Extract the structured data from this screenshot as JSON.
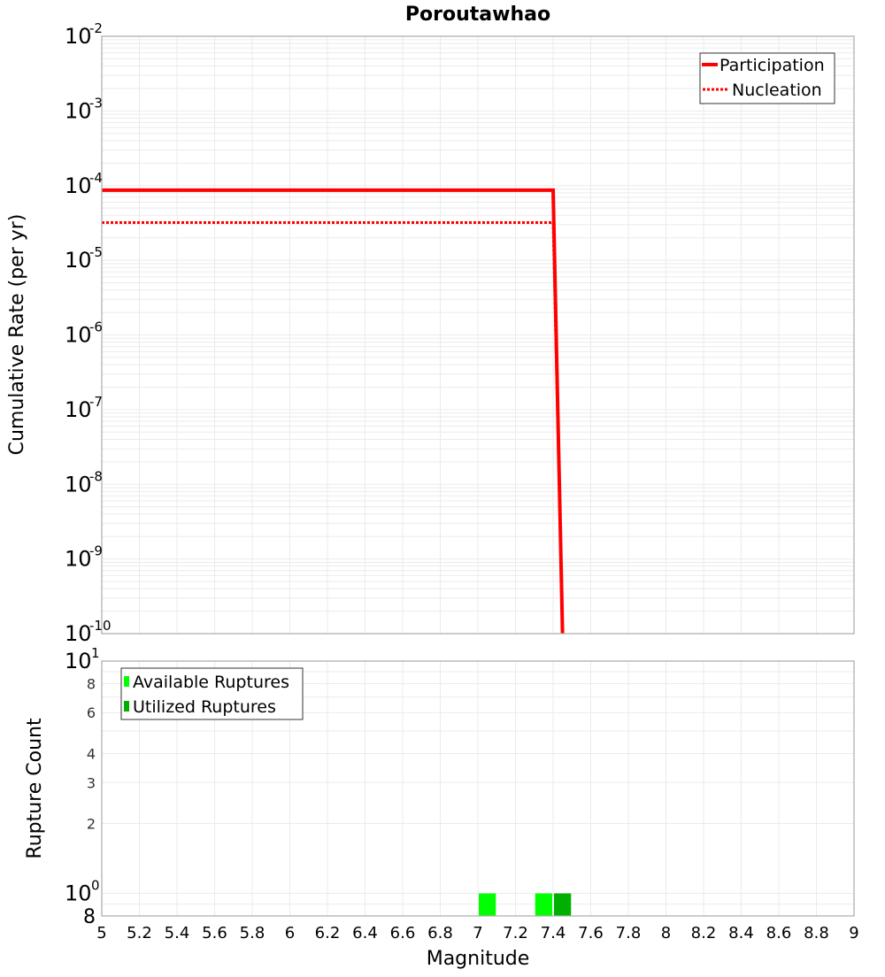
{
  "chart_data": [
    {
      "type": "line",
      "title": "Poroutawhao",
      "xlabel": "",
      "ylabel": "Cumulative Rate (per yr)",
      "yscale": "log",
      "xlim": [
        5,
        9
      ],
      "ylim": [
        1e-10,
        0.01
      ],
      "y_ticks": [
        "10^-2",
        "10^-3",
        "10^-4",
        "10^-5",
        "10^-6",
        "10^-7",
        "10^-8",
        "10^-9",
        "10^-10"
      ],
      "grid": true,
      "legend_position": "upper right",
      "series": [
        {
          "name": "Participation",
          "color": "#ff0000",
          "style": "solid",
          "x": [
            5.0,
            7.4,
            7.45
          ],
          "y": [
            8.7e-05,
            8.7e-05,
            1e-10
          ]
        },
        {
          "name": "Nucleation",
          "color": "#ff0000",
          "style": "dotted",
          "x": [
            5.0,
            7.4,
            7.45
          ],
          "y": [
            3.2e-05,
            3.2e-05,
            1e-10
          ]
        }
      ]
    },
    {
      "type": "bar",
      "title": "",
      "xlabel": "Magnitude",
      "ylabel": "Rupture Count",
      "yscale": "log",
      "xlim": [
        5,
        9
      ],
      "ylim": [
        0.8,
        10
      ],
      "x_ticks": [
        "5",
        "5.2",
        "5.4",
        "5.6",
        "5.8",
        "6",
        "6.2",
        "6.4",
        "6.6",
        "6.8",
        "7",
        "7.2",
        "7.4",
        "7.6",
        "7.8",
        "8",
        "8.2",
        "8.4",
        "8.6",
        "8.8",
        "9"
      ],
      "y_ticks": [
        "10^1",
        "8",
        "6",
        "4",
        "3",
        "2",
        "10^0",
        "8"
      ],
      "grid": true,
      "legend_position": "upper left",
      "bar_width": 0.1,
      "series": [
        {
          "name": "Available Ruptures",
          "color": "#00ff00",
          "x": [
            7.05,
            7.35
          ],
          "values": [
            1,
            1
          ]
        },
        {
          "name": "Utilized Ruptures",
          "color": "#00b000",
          "x": [
            7.45
          ],
          "values": [
            1
          ]
        }
      ]
    }
  ],
  "title": "Poroutawhao",
  "top_plot": {
    "ylabel": "Cumulative Rate (per yr)",
    "legend": [
      {
        "label": "Participation",
        "color": "#ff0000",
        "style": "solid"
      },
      {
        "label": "Nucleation",
        "color": "#ff0000",
        "style": "dotted"
      }
    ]
  },
  "bottom_plot": {
    "ylabel": "Rupture Count",
    "xlabel": "Magnitude",
    "legend": [
      {
        "label": "Available Ruptures",
        "color": "#00ff00"
      },
      {
        "label": "Utilized Ruptures",
        "color": "#00b000"
      }
    ]
  }
}
